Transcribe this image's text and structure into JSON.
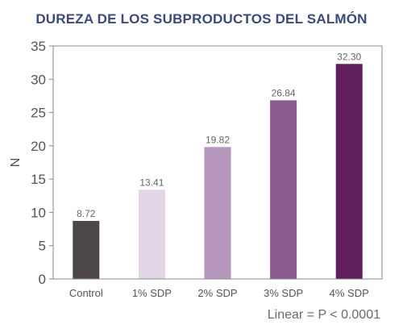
{
  "chart_data": {
    "type": "bar",
    "title": "DUREZA DE LOS SUBPRODUCTOS DEL SALMÓN",
    "ylabel": "N",
    "xlabel": "",
    "ylim": [
      0,
      35
    ],
    "yticks": [
      0,
      5,
      10,
      15,
      20,
      25,
      30,
      35
    ],
    "categories": [
      "Control",
      "1% SDP",
      "2% SDP",
      "3% SDP",
      "4% SDP"
    ],
    "values": [
      8.72,
      13.41,
      19.82,
      26.84,
      32.3
    ],
    "value_labels": [
      "8.72",
      "13.41",
      "19.82",
      "26.84",
      "32.30"
    ],
    "bar_colors": [
      "#4d4748",
      "#e3d6e6",
      "#b897be",
      "#8c5b8f",
      "#5e1f5c"
    ],
    "grid": false,
    "annotation": "Linear = P < 0.0001"
  },
  "colors": {
    "title": "#3b4a78",
    "axis": "#7a7a7a",
    "text": "#555555"
  }
}
